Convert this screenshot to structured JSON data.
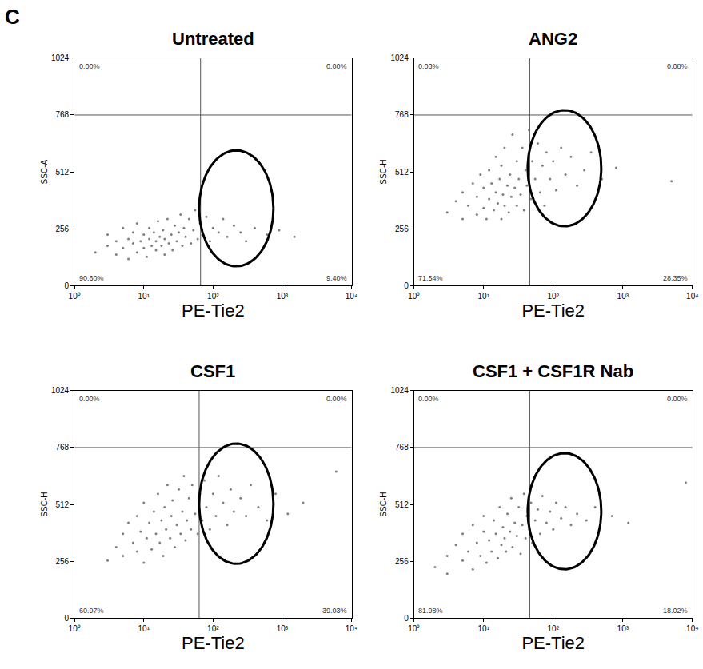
{
  "panel_label": "C",
  "chart_data": [
    {
      "type": "scatter",
      "title": "Untreated",
      "x_label": "PE-Tie2",
      "y_label": "SSC-A",
      "log": "x",
      "color": "#7f7f7f",
      "marker": "dot",
      "xlim": [
        1,
        10000
      ],
      "xticks": [
        {
          "value": 1,
          "label": "10⁰"
        },
        {
          "value": 10,
          "label": "10¹"
        },
        {
          "value": 100,
          "label": "10²"
        },
        {
          "value": 1000,
          "label": "10³"
        },
        {
          "value": 10000,
          "label": "10⁴"
        }
      ],
      "ylim": [
        0,
        1024
      ],
      "yticks": [
        0,
        256,
        512,
        768,
        1024
      ],
      "quadrant": {
        "x": 66,
        "y": 768
      },
      "quadrant_labels": [
        "0.00%",
        "0.00%",
        "90.60%",
        "9.40%"
      ],
      "gate": {
        "x": [
          63,
          745
        ],
        "y": [
          87,
          609
        ]
      },
      "x": [
        2,
        3,
        3,
        4,
        4,
        5,
        5,
        6,
        6,
        7,
        7,
        8,
        8,
        9,
        10,
        10,
        11,
        12,
        12,
        13,
        14,
        15,
        15,
        16,
        17,
        18,
        19,
        20,
        20,
        22,
        23,
        25,
        26,
        28,
        30,
        32,
        34,
        36,
        38,
        40,
        45,
        48,
        52,
        55,
        60,
        65,
        70,
        80,
        90,
        100,
        120,
        140,
        160,
        200,
        250,
        300,
        400,
        600,
        900,
        1500
      ],
      "y": [
        150,
        180,
        230,
        140,
        200,
        170,
        260,
        120,
        210,
        190,
        240,
        150,
        280,
        200,
        170,
        230,
        130,
        210,
        260,
        180,
        240,
        160,
        200,
        290,
        220,
        180,
        250,
        140,
        210,
        300,
        190,
        230,
        160,
        270,
        200,
        240,
        320,
        180,
        260,
        220,
        300,
        190,
        250,
        340,
        210,
        280,
        230,
        310,
        200,
        260,
        240,
        300,
        220,
        270,
        240,
        200,
        260,
        230,
        250,
        220
      ]
    },
    {
      "type": "scatter",
      "title": "ANG2",
      "x_label": "PE-Tie2",
      "y_label": "SSC-H",
      "log": "x",
      "color": "#7f7f7f",
      "marker": "dot",
      "xlim": [
        1,
        10000
      ],
      "xticks": [
        {
          "value": 1,
          "label": "10⁰"
        },
        {
          "value": 10,
          "label": "10¹"
        },
        {
          "value": 100,
          "label": "10²"
        },
        {
          "value": 1000,
          "label": "10³"
        },
        {
          "value": 10000,
          "label": "10⁴"
        }
      ],
      "ylim": [
        0,
        1024
      ],
      "yticks": [
        0,
        256,
        512,
        768,
        1024
      ],
      "quadrant": {
        "x": 46,
        "y": 768
      },
      "quadrant_labels": [
        "0.03%",
        "0.08%",
        "71.54%",
        "28.35%"
      ],
      "gate": {
        "x": [
          43,
          490
        ],
        "y": [
          267,
          790
        ]
      },
      "x": [
        3,
        4,
        5,
        5,
        6,
        7,
        8,
        8,
        9,
        10,
        10,
        11,
        12,
        12,
        13,
        14,
        15,
        15,
        16,
        17,
        18,
        18,
        19,
        20,
        20,
        22,
        23,
        24,
        25,
        26,
        28,
        30,
        30,
        32,
        34,
        36,
        38,
        40,
        42,
        45,
        48,
        50,
        55,
        60,
        65,
        70,
        75,
        80,
        90,
        100,
        110,
        130,
        150,
        180,
        220,
        280,
        350,
        500,
        800,
        5000
      ],
      "y": [
        330,
        380,
        300,
        420,
        360,
        460,
        320,
        400,
        500,
        350,
        440,
        300,
        390,
        520,
        460,
        340,
        420,
        580,
        370,
        480,
        300,
        540,
        410,
        360,
        620,
        450,
        330,
        500,
        400,
        680,
        440,
        360,
        560,
        480,
        410,
        620,
        340,
        520,
        450,
        700,
        390,
        560,
        480,
        640,
        420,
        540,
        360,
        600,
        480,
        560,
        430,
        620,
        500,
        580,
        450,
        520,
        600,
        480,
        530,
        470
      ]
    },
    {
      "type": "scatter",
      "title": "CSF1",
      "x_label": "PE-Tie2",
      "y_label": "SSC-H",
      "log": "x",
      "color": "#7f7f7f",
      "marker": "dot",
      "xlim": [
        1,
        10000
      ],
      "xticks": [
        {
          "value": 1,
          "label": "10⁰"
        },
        {
          "value": 10,
          "label": "10¹"
        },
        {
          "value": 100,
          "label": "10²"
        },
        {
          "value": 1000,
          "label": "10³"
        },
        {
          "value": 10000,
          "label": "10⁴"
        }
      ],
      "ylim": [
        0,
        1024
      ],
      "yticks": [
        0,
        256,
        512,
        768,
        1024
      ],
      "quadrant": {
        "x": 63,
        "y": 768
      },
      "quadrant_labels": [
        "0.00%",
        "0.00%",
        "60.97%",
        "39.03%"
      ],
      "gate": {
        "x": [
          63,
          745
        ],
        "y": [
          245,
          786
        ]
      },
      "x": [
        3,
        4,
        5,
        5,
        6,
        7,
        8,
        8,
        9,
        10,
        10,
        11,
        12,
        13,
        14,
        15,
        16,
        17,
        18,
        19,
        20,
        21,
        22,
        24,
        25,
        26,
        28,
        30,
        32,
        34,
        36,
        38,
        40,
        42,
        45,
        48,
        50,
        55,
        60,
        65,
        70,
        75,
        80,
        90,
        100,
        110,
        120,
        140,
        160,
        180,
        200,
        250,
        300,
        350,
        450,
        600,
        800,
        1200,
        2000,
        6000
      ],
      "y": [
        260,
        320,
        380,
        280,
        430,
        340,
        300,
        460,
        390,
        250,
        520,
        360,
        430,
        310,
        480,
        380,
        560,
        340,
        440,
        280,
        500,
        400,
        600,
        360,
        460,
        530,
        320,
        420,
        580,
        380,
        480,
        640,
        350,
        440,
        540,
        400,
        600,
        470,
        380,
        560,
        440,
        620,
        500,
        400,
        560,
        460,
        640,
        520,
        420,
        580,
        480,
        540,
        460,
        600,
        500,
        440,
        560,
        470,
        520,
        660
      ]
    },
    {
      "type": "scatter",
      "title": "CSF1 + CSF1R Nab",
      "x_label": "PE-Tie2",
      "y_label": "SSC-H",
      "log": "x",
      "color": "#7f7f7f",
      "marker": "dot",
      "xlim": [
        1,
        10000
      ],
      "xticks": [
        {
          "value": 1,
          "label": "10⁰"
        },
        {
          "value": 10,
          "label": "10¹"
        },
        {
          "value": 100,
          "label": "10²"
        },
        {
          "value": 1000,
          "label": "10³"
        },
        {
          "value": 10000,
          "label": "10⁴"
        }
      ],
      "ylim": [
        0,
        1024
      ],
      "yticks": [
        0,
        256,
        512,
        768,
        1024
      ],
      "quadrant": {
        "x": 46,
        "y": 768
      },
      "quadrant_labels": [
        "0.00%",
        "0.00%",
        "81.98%",
        "18.02%"
      ],
      "gate": {
        "x": [
          43,
          490
        ],
        "y": [
          220,
          743
        ]
      },
      "x": [
        2,
        3,
        3,
        4,
        5,
        5,
        6,
        7,
        7,
        8,
        9,
        10,
        10,
        11,
        12,
        13,
        14,
        15,
        16,
        17,
        18,
        19,
        20,
        21,
        22,
        24,
        25,
        26,
        28,
        30,
        32,
        34,
        36,
        38,
        40,
        42,
        45,
        48,
        50,
        55,
        60,
        65,
        70,
        80,
        90,
        100,
        110,
        130,
        150,
        180,
        220,
        300,
        400,
        700,
        1200,
        8000
      ],
      "y": [
        230,
        280,
        200,
        330,
        260,
        380,
        300,
        220,
        420,
        340,
        280,
        390,
        460,
        250,
        350,
        300,
        440,
        380,
        270,
        500,
        330,
        410,
        360,
        300,
        470,
        390,
        540,
        320,
        430,
        370,
        500,
        290,
        420,
        560,
        360,
        460,
        400,
        520,
        340,
        440,
        490,
        380,
        550,
        430,
        480,
        400,
        520,
        450,
        500,
        420,
        470,
        440,
        500,
        460,
        430,
        610
      ]
    }
  ]
}
